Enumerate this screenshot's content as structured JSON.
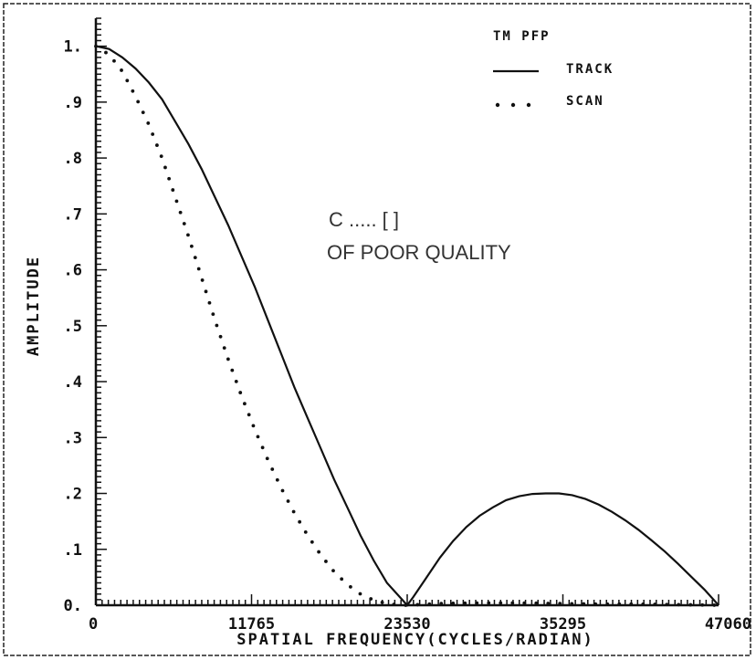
{
  "chart_data": {
    "type": "line",
    "title": "",
    "xlabel": "SPATIAL FREQUENCY(CYCLES/RADIAN)",
    "ylabel": "AMPLITUDE",
    "xlim": [
      0,
      47060
    ],
    "ylim": [
      0,
      1.05
    ],
    "x_ticks": [
      0,
      11765,
      23530,
      35295,
      47060
    ],
    "x_tick_labels": [
      "0",
      "11765",
      "23530",
      "35295",
      "47060"
    ],
    "y_ticks": [
      0,
      0.1,
      0.2,
      0.3,
      0.4,
      0.5,
      0.6,
      0.7,
      0.8,
      0.9,
      1.0
    ],
    "y_tick_labels": [
      "0.",
      ".1",
      ".2",
      ".3",
      ".4",
      ".5",
      ".6",
      ".7",
      ".8",
      ".9",
      "1."
    ],
    "grid": false,
    "legend": {
      "title": "TM PFP",
      "placement": "top-right",
      "entries": [
        {
          "label": "TRACK",
          "style": "solid"
        },
        {
          "label": "SCAN",
          "style": "dotted"
        }
      ]
    },
    "annotation_lines": [
      "C ..... [ ]",
      "OF POOR QUALITY"
    ],
    "series": [
      {
        "name": "TRACK",
        "style": "solid",
        "x": [
          0,
          1000,
          2000,
          3000,
          4000,
          5000,
          6000,
          7000,
          8000,
          9000,
          10000,
          11000,
          12000,
          13000,
          14000,
          15000,
          16000,
          17000,
          18000,
          19000,
          20000,
          21000,
          22000,
          23530,
          24000,
          25000,
          26000,
          27000,
          28000,
          29000,
          30000,
          31000,
          32000,
          33000,
          34000,
          35000,
          36000,
          37000,
          38000,
          39000,
          40000,
          41000,
          42000,
          43000,
          44000,
          45000,
          46000,
          47060
        ],
        "y": [
          1.0,
          0.995,
          0.98,
          0.96,
          0.935,
          0.905,
          0.865,
          0.825,
          0.78,
          0.73,
          0.68,
          0.625,
          0.57,
          0.51,
          0.45,
          0.39,
          0.335,
          0.28,
          0.225,
          0.175,
          0.125,
          0.08,
          0.04,
          0.0,
          0.015,
          0.05,
          0.085,
          0.115,
          0.14,
          0.16,
          0.175,
          0.188,
          0.195,
          0.199,
          0.2,
          0.2,
          0.197,
          0.19,
          0.18,
          0.167,
          0.152,
          0.135,
          0.116,
          0.096,
          0.074,
          0.051,
          0.028,
          0.0
        ]
      },
      {
        "name": "SCAN",
        "style": "dotted",
        "x": [
          0,
          1000,
          2000,
          3000,
          4000,
          5000,
          6000,
          7000,
          8000,
          9000,
          10000,
          11000,
          12000,
          13000,
          14000,
          15000,
          16000,
          17000,
          18000,
          19000,
          20000,
          21000,
          22000,
          23000,
          23530,
          26000,
          29000,
          32000,
          35000,
          38000,
          41000,
          44000,
          47060
        ],
        "y": [
          1.0,
          0.985,
          0.955,
          0.91,
          0.86,
          0.8,
          0.73,
          0.66,
          0.585,
          0.51,
          0.44,
          0.375,
          0.315,
          0.26,
          0.21,
          0.165,
          0.125,
          0.09,
          0.06,
          0.037,
          0.02,
          0.009,
          0.003,
          0.0,
          0.0,
          0.003,
          0.004,
          0.004,
          0.003,
          0.002,
          0.002,
          0.001,
          0.0
        ]
      }
    ]
  }
}
